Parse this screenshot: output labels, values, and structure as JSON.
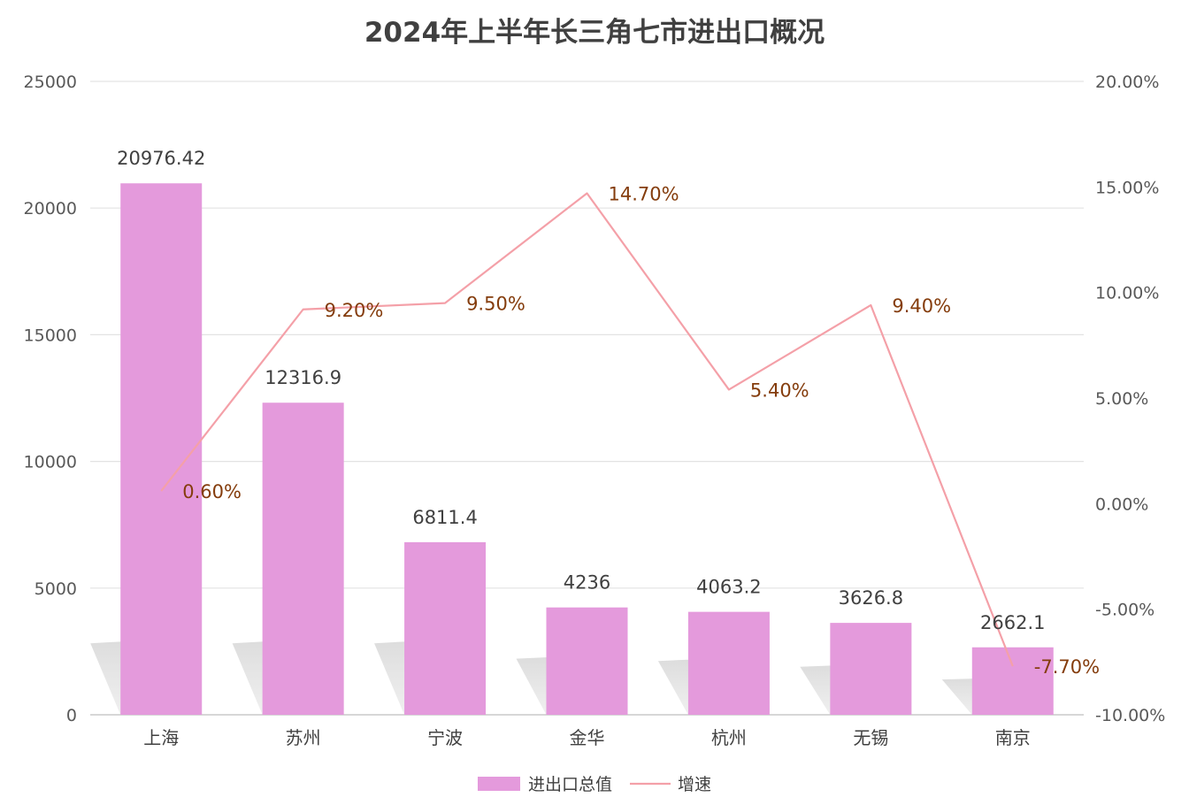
{
  "chart_data": {
    "type": "bar",
    "title": "2024年上半年长三角七市进出口概况",
    "categories": [
      "上海",
      "苏州",
      "宁波",
      "金华",
      "杭州",
      "无锡",
      "南京"
    ],
    "series": [
      {
        "name": "进出口总值",
        "type": "bar",
        "axis": "left",
        "values": [
          20976.42,
          12316.9,
          6811.4,
          4236,
          4063.2,
          3626.8,
          2662.1
        ],
        "labels": [
          "20976.42",
          "12316.9",
          "6811.4",
          "4236",
          "4063.2",
          "3626.8",
          "2662.1"
        ],
        "color": "#e49adc"
      },
      {
        "name": "增速",
        "type": "line",
        "axis": "right",
        "values": [
          0.6,
          9.2,
          9.5,
          14.7,
          5.4,
          9.4,
          -7.7
        ],
        "labels": [
          "0.60%",
          "9.20%",
          "9.50%",
          "14.70%",
          "5.40%",
          "9.40%",
          "-7.70%"
        ],
        "color": "#f4a0a8"
      }
    ],
    "left_axis": {
      "ylim": [
        0,
        25000
      ],
      "ticks": [
        0,
        5000,
        10000,
        15000,
        20000,
        25000
      ],
      "tick_labels": [
        "0",
        "5000",
        "10000",
        "15000",
        "20000",
        "25000"
      ]
    },
    "right_axis": {
      "ylim": [
        -10,
        20
      ],
      "ticks": [
        -10,
        -5,
        0,
        5,
        10,
        15,
        20
      ],
      "tick_labels": [
        "-10.00%",
        "-5.00%",
        "0.00%",
        "5.00%",
        "10.00%",
        "15.00%",
        "20.00%"
      ]
    },
    "grid": true,
    "legend": "bottom"
  }
}
